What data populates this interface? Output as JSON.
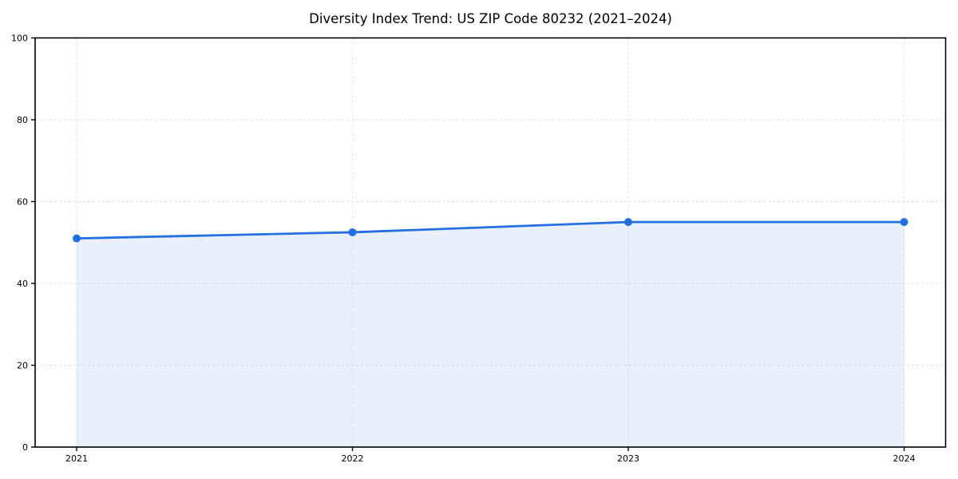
{
  "chart_data": {
    "type": "area",
    "title": "Diversity Index Trend: US ZIP Code 80232 (2021–2024)",
    "categories": [
      "2021",
      "2022",
      "2023",
      "2024"
    ],
    "series": [
      {
        "name": "Diversity Index",
        "values": [
          51,
          52.5,
          55,
          55
        ]
      }
    ],
    "xlabel": "",
    "ylabel": "",
    "ylim": [
      0,
      100
    ],
    "yticks": [
      0,
      20,
      40,
      60,
      80,
      100
    ],
    "grid": {
      "shown": true,
      "style": "dashed",
      "axes": "both"
    },
    "legend": "none",
    "marker": "circle",
    "colors": {
      "line": "#2570e0",
      "marker": "#2570e0",
      "fill": "#2570e0",
      "fill_opacity": 0.1,
      "grid": "#e1e1e1",
      "spine": "#000000",
      "text": "#000000",
      "background": "#ffffff"
    }
  }
}
